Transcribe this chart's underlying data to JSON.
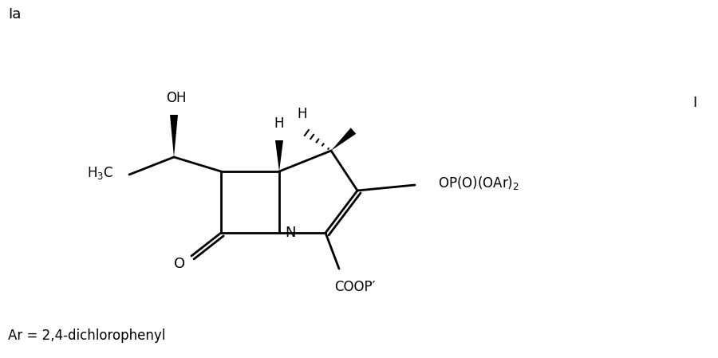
{
  "title_label": "Ia",
  "corner_label": "I",
  "bottom_label": "Ar = 2,4-dichlorophenyl",
  "bg_color": "#ffffff",
  "line_color": "#000000",
  "lw": 1.8
}
